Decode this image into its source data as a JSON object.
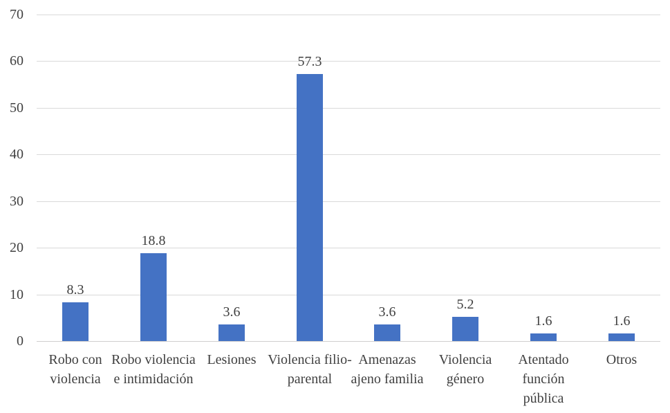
{
  "chart_data": {
    "type": "bar",
    "title": "",
    "xlabel": "",
    "ylabel": "",
    "categories": [
      "Robo con violencia",
      "Robo violencia e intimidación",
      "Lesiones",
      "Violencia filio-parental",
      "Amenazas ajeno familia",
      "Violencia género",
      "Atentado función pública",
      "Otros"
    ],
    "values": [
      8.3,
      18.8,
      3.6,
      57.3,
      3.6,
      5.2,
      1.6,
      1.6
    ],
    "data_labels": [
      "8.3",
      "18.8",
      "3.6",
      "57.3",
      "3.6",
      "5.2",
      "1.6",
      "1.6"
    ],
    "ylim": [
      0,
      70
    ],
    "yticks": [
      0,
      10,
      20,
      30,
      40,
      50,
      60,
      70
    ],
    "grid": true,
    "legend": false,
    "bar_color": "#4472C4",
    "gridline_color": "#D9D9D9",
    "axis_line_color": "#D0CECE",
    "text_color": "#404040"
  }
}
